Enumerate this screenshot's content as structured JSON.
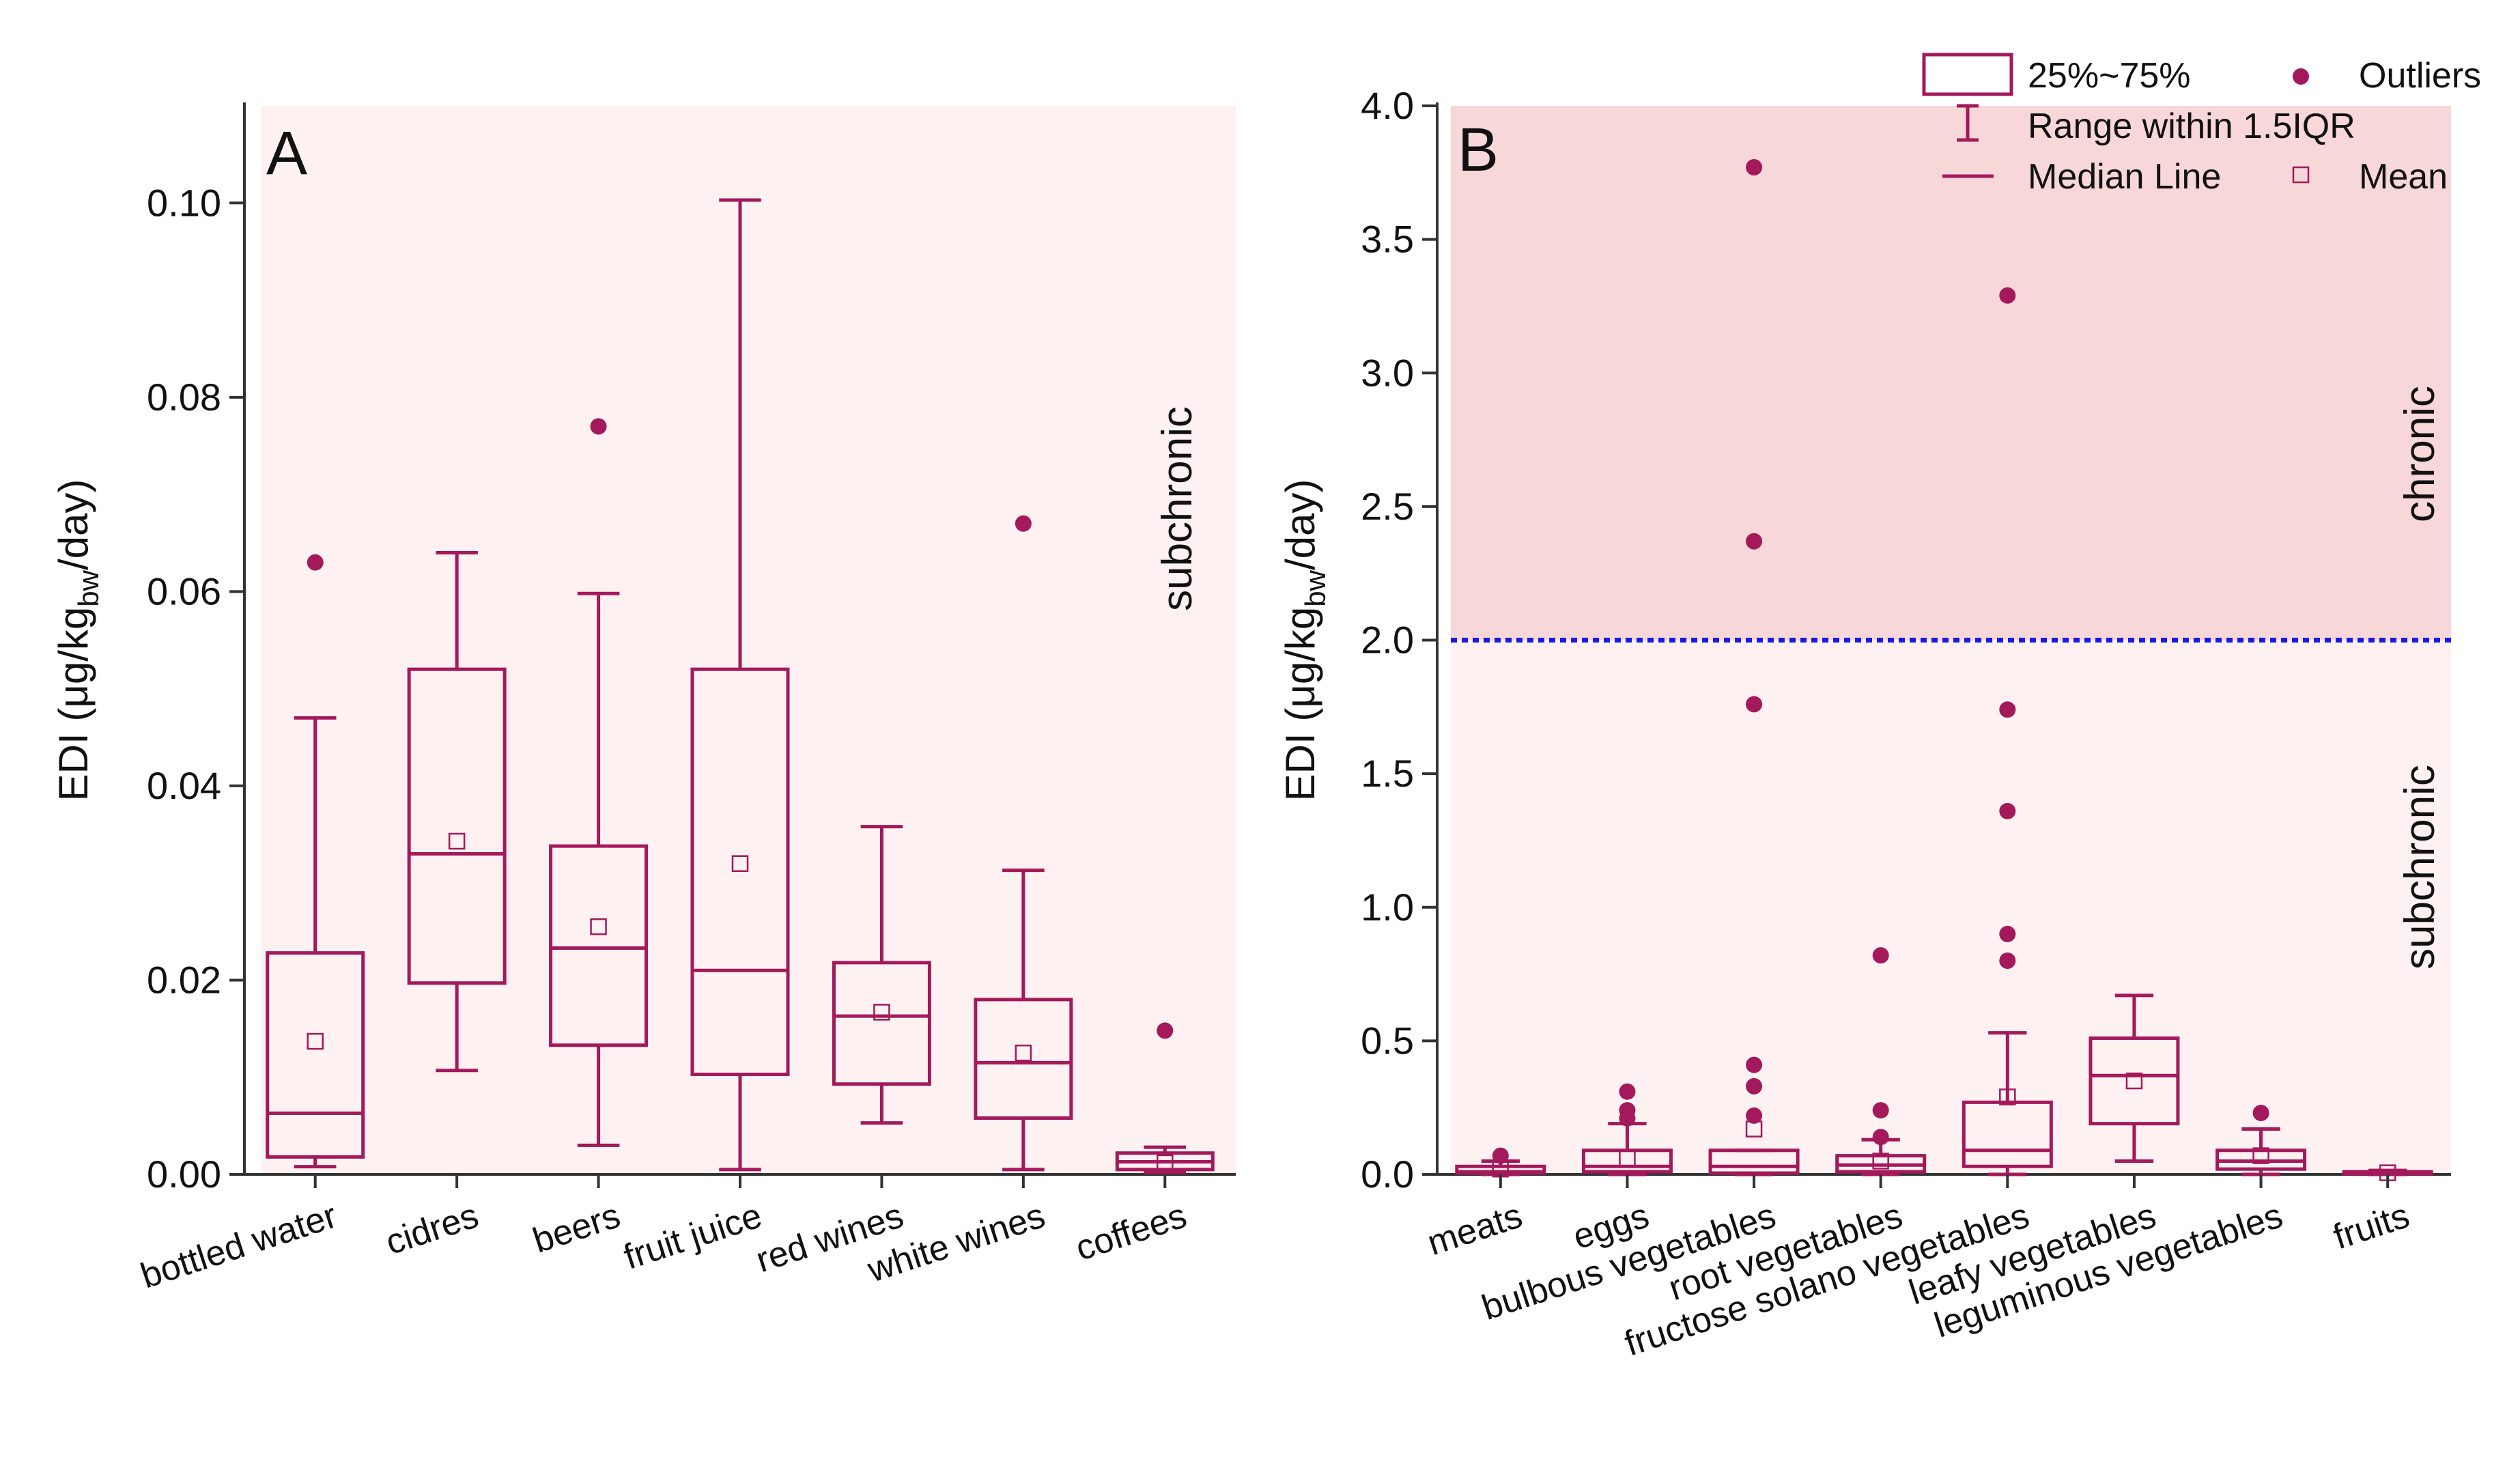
{
  "colors": {
    "box": "#a3195b",
    "panel_bg": "#fdf1f1",
    "chronic_bg": "#f7d7d7",
    "threshold": "#1a1ae6",
    "axis": "#333333",
    "text": "#111111"
  },
  "legend": {
    "box_label": "25%~75%",
    "whisker_label": "Range within 1.5IQR",
    "median_label": "Median Line",
    "outlier_label": "Outliers",
    "mean_label": "Mean"
  },
  "chart_data": [
    {
      "panel": "A",
      "type": "box",
      "ylabel": "EDI (μg/kg_bw/day)",
      "ylabel_parts": [
        "EDI (μg/kg",
        "bw",
        "/day)"
      ],
      "ylim": [
        0,
        0.11
      ],
      "yticks": [
        0.0,
        0.02,
        0.04,
        0.06,
        0.08,
        0.1
      ],
      "ytick_labels": [
        "0.00",
        "0.02",
        "0.04",
        "0.06",
        "0.08",
        "0.10"
      ],
      "region_label": "subchronic",
      "categories": [
        "bottled water",
        "cidres",
        "beers",
        "fruit juice",
        "red wines",
        "white wines",
        "coffees"
      ],
      "boxes": [
        {
          "min": 0.0008,
          "q1": 0.0018,
          "median": 0.0063,
          "q3": 0.0228,
          "max": 0.047,
          "mean": 0.0137,
          "outliers": [
            0.063
          ]
        },
        {
          "min": 0.0107,
          "q1": 0.0197,
          "median": 0.033,
          "q3": 0.052,
          "max": 0.064,
          "mean": 0.0343,
          "outliers": []
        },
        {
          "min": 0.003,
          "q1": 0.0133,
          "median": 0.0233,
          "q3": 0.0338,
          "max": 0.0598,
          "mean": 0.0255,
          "outliers": [
            0.077
          ]
        },
        {
          "min": 0.0005,
          "q1": 0.0103,
          "median": 0.021,
          "q3": 0.052,
          "max": 0.1003,
          "mean": 0.032,
          "outliers": []
        },
        {
          "min": 0.0053,
          "q1": 0.0093,
          "median": 0.0163,
          "q3": 0.0218,
          "max": 0.0358,
          "mean": 0.0167,
          "outliers": []
        },
        {
          "min": 0.0005,
          "q1": 0.0058,
          "median": 0.0115,
          "q3": 0.018,
          "max": 0.0313,
          "mean": 0.0125,
          "outliers": [
            0.067
          ]
        },
        {
          "min": 0.0002,
          "q1": 0.0005,
          "median": 0.0013,
          "q3": 0.0022,
          "max": 0.0028,
          "mean": 0.0012,
          "outliers": [
            0.0148
          ]
        }
      ]
    },
    {
      "panel": "B",
      "type": "box",
      "ylabel": "EDI (μg/kg_bw/day)",
      "ylabel_parts": [
        "EDI (μg/kg",
        "bw",
        "/day)"
      ],
      "ylim": [
        0,
        4.0
      ],
      "yticks": [
        0.0,
        0.5,
        1.0,
        1.5,
        2.0,
        2.5,
        3.0,
        3.5,
        4.0
      ],
      "ytick_labels": [
        "0.0",
        "0.5",
        "1.0",
        "1.5",
        "2.0",
        "2.5",
        "3.0",
        "3.5",
        "4.0"
      ],
      "threshold": 2.0,
      "region_labels": {
        "upper": "chronic",
        "lower": "subchronic"
      },
      "categories": [
        "meats",
        "eggs",
        "bulbous vegetables",
        "root vegetables",
        "fructose solano vegetables",
        "leafy vegetables",
        "leguminous vegetables",
        "fruits"
      ],
      "boxes": [
        {
          "min": 0.0,
          "q1": 0.005,
          "median": 0.01,
          "q3": 0.03,
          "max": 0.05,
          "mean": 0.02,
          "outliers": [
            0.07
          ]
        },
        {
          "min": 0.0,
          "q1": 0.01,
          "median": 0.03,
          "q3": 0.09,
          "max": 0.19,
          "mean": 0.06,
          "outliers": [
            0.21,
            0.24,
            0.31
          ]
        },
        {
          "min": 0.0,
          "q1": 0.005,
          "median": 0.03,
          "q3": 0.09,
          "max": 0.09,
          "mean": 0.17,
          "outliers": [
            0.22,
            0.33,
            0.41,
            1.76,
            2.37,
            3.77
          ]
        },
        {
          "min": 0.0,
          "q1": 0.01,
          "median": 0.035,
          "q3": 0.07,
          "max": 0.13,
          "mean": 0.05,
          "outliers": [
            0.14,
            0.24,
            0.82
          ]
        },
        {
          "min": 0.0,
          "q1": 0.03,
          "median": 0.09,
          "q3": 0.27,
          "max": 0.53,
          "mean": 0.29,
          "outliers": [
            0.8,
            0.9,
            1.36,
            1.74,
            3.29
          ]
        },
        {
          "min": 0.05,
          "q1": 0.19,
          "median": 0.37,
          "q3": 0.51,
          "max": 0.67,
          "mean": 0.35,
          "outliers": []
        },
        {
          "min": 0.0,
          "q1": 0.02,
          "median": 0.05,
          "q3": 0.09,
          "max": 0.17,
          "mean": 0.07,
          "outliers": [
            0.23
          ]
        },
        {
          "min": 0.0,
          "q1": 0.002,
          "median": 0.005,
          "q3": 0.01,
          "max": 0.015,
          "mean": 0.006,
          "outliers": []
        }
      ]
    }
  ]
}
